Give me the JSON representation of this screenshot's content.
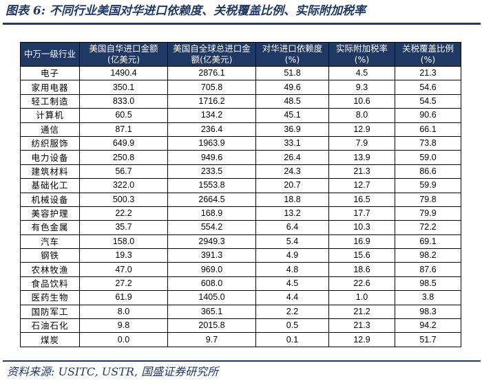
{
  "title": "图表 6:  不同行业美国对华进口依赖度、关税覆盖比例、实际附加税率",
  "headers": [
    "中万一级行业",
    "美国自华进口金额\n(亿美元)",
    "美国自全球总进口金\n额(亿美元)",
    "对华进口依赖度\n(%)",
    "实际附加税率\n(%)",
    "关税覆盖比例\n(%)"
  ],
  "rows": [
    [
      "电子",
      "1490.4",
      "2876.1",
      "51.8",
      "4.5",
      "21.3"
    ],
    [
      "家用电器",
      "350.1",
      "705.8",
      "49.6",
      "9.3",
      "54.6"
    ],
    [
      "轻工制造",
      "833.0",
      "1716.2",
      "48.5",
      "10.6",
      "54.5"
    ],
    [
      "计算机",
      "60.5",
      "134.2",
      "45.1",
      "8.0",
      "90.6"
    ],
    [
      "通信",
      "87.1",
      "236.4",
      "36.9",
      "12.9",
      "66.1"
    ],
    [
      "纺织服饰",
      "649.9",
      "1963.9",
      "33.1",
      "7.9",
      "73.8"
    ],
    [
      "电力设备",
      "250.8",
      "949.6",
      "26.4",
      "13.9",
      "59.0"
    ],
    [
      "建筑材料",
      "56.7",
      "233.5",
      "24.3",
      "21.3",
      "86.6"
    ],
    [
      "基础化工",
      "322.0",
      "1553.8",
      "20.7",
      "12.7",
      "59.9"
    ],
    [
      "机械设备",
      "500.3",
      "2664.5",
      "18.8",
      "16.5",
      "79.8"
    ],
    [
      "美容护理",
      "22.2",
      "168.9",
      "13.2",
      "17.7",
      "79.9"
    ],
    [
      "有色金属",
      "35.7",
      "554.2",
      "6.4",
      "10.3",
      "72.2"
    ],
    [
      "汽车",
      "158.0",
      "2949.3",
      "5.4",
      "16.9",
      "69.1"
    ],
    [
      "钢铁",
      "19.3",
      "391.3",
      "4.9",
      "15.6",
      "98.2"
    ],
    [
      "农林牧渔",
      "47.0",
      "969.0",
      "4.8",
      "18.6",
      "87.6"
    ],
    [
      "食品饮料",
      "27.2",
      "608.0",
      "4.5",
      "22.6",
      "98.5"
    ],
    [
      "医药生物",
      "61.9",
      "1405.0",
      "4.4",
      "1.0",
      "3.8"
    ],
    [
      "国防军工",
      "8.0",
      "365.1",
      "2.2",
      "21.2",
      "98.3"
    ],
    [
      "石油石化",
      "9.8",
      "2015.8",
      "0.5",
      "21.3",
      "94.2"
    ],
    [
      "煤炭",
      "0.0",
      "9.7",
      "0.1",
      "12.9",
      "51.7"
    ]
  ],
  "source": "资料来源:  USITC, USTR, 国盛证券研究所",
  "colors": {
    "header_bg": "#1f3864",
    "header_text": "#ffffff",
    "title": "#1f3864"
  }
}
